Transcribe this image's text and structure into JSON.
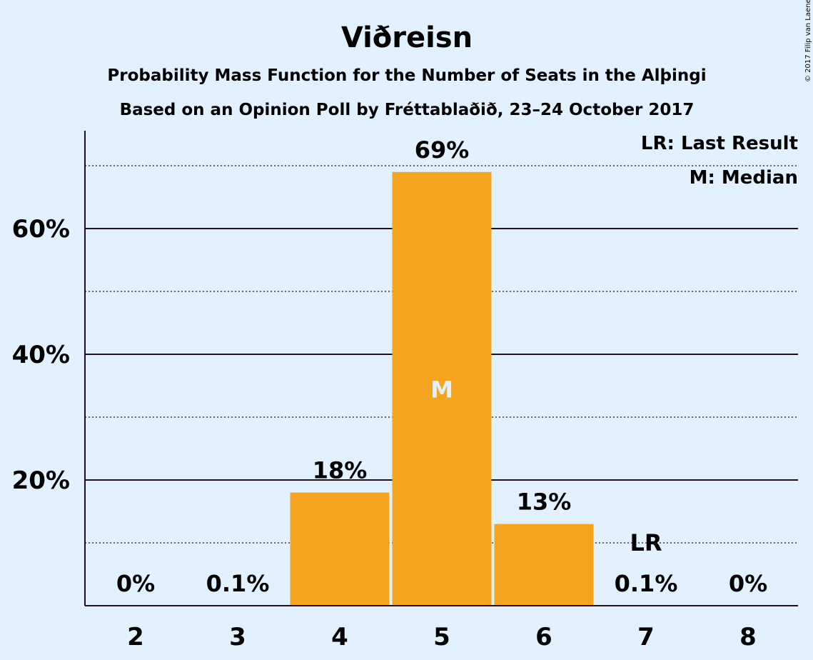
{
  "chart_data": {
    "type": "bar",
    "title": "Viðreisn",
    "subtitle": "Probability Mass Function for the Number of Seats in the Alþingi",
    "subtitle2": "Based on an Opinion Poll by Fréttablaðið, 23–24 October 2017",
    "copyright": "© 2017 Filip van Laenen",
    "categories": [
      "2",
      "3",
      "4",
      "5",
      "6",
      "7",
      "8"
    ],
    "values": [
      0,
      0.1,
      18,
      69,
      13,
      0.1,
      0
    ],
    "value_labels": [
      "0%",
      "0.1%",
      "18%",
      "69%",
      "13%",
      "0.1%",
      "0%"
    ],
    "ylim": [
      0,
      75
    ],
    "y_ticks": [
      {
        "value": 20,
        "label": "20%"
      },
      {
        "value": 40,
        "label": "40%"
      },
      {
        "value": 60,
        "label": "60%"
      }
    ],
    "dotted_gridlines": [
      10,
      30,
      50,
      70
    ],
    "median_category": "5",
    "median_marker": "M",
    "last_result_category": "7",
    "last_result_marker": "LR",
    "legend": [
      "LR: Last Result",
      "M: Median"
    ],
    "legend_position": "top-right",
    "colors": {
      "bar": "#f4a41f",
      "background": "#e1f1ff",
      "text": "#1e0f12",
      "median_text": "#e1f1ff"
    }
  }
}
